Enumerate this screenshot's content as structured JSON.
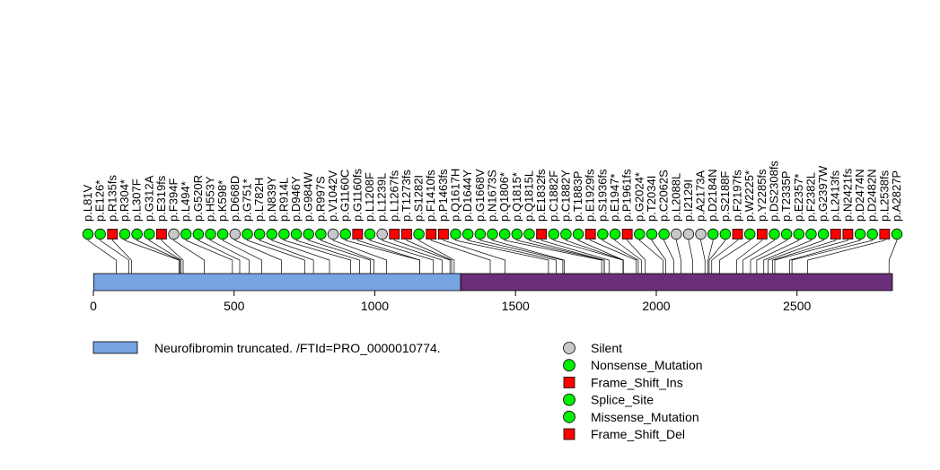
{
  "chart_data": {
    "type": "lollipop",
    "title": "",
    "xlabel": "",
    "ylabel": "",
    "xlim": [
      0,
      2839
    ],
    "x_ticks": [
      0,
      500,
      1000,
      1500,
      2000,
      2500
    ],
    "domains": [
      {
        "name": "Neurofibromin truncated. /FTId=PRO_0000010774.",
        "start": 1,
        "end": 1305,
        "color": "#77A4E2",
        "in_legend": true
      },
      {
        "name": "",
        "start": 1305,
        "end": 2839,
        "color": "#6B2E78",
        "in_legend": false
      }
    ],
    "mutation_types": [
      {
        "name": "Silent",
        "shape": "circle",
        "color": "#C8C8C8"
      },
      {
        "name": "Nonsense_Mutation",
        "shape": "circle",
        "color": "#00EE00"
      },
      {
        "name": "Frame_Shift_Ins",
        "shape": "square",
        "color": "#FF0000"
      },
      {
        "name": "Splice_Site",
        "shape": "circle",
        "color": "#00EE00"
      },
      {
        "name": "Missense_Mutation",
        "shape": "circle",
        "color": "#00EE00"
      },
      {
        "name": "Frame_Shift_Del",
        "shape": "square",
        "color": "#FF0000"
      }
    ],
    "mutations": [
      {
        "label": "p.L81V",
        "pos": 81,
        "type": "Missense_Mutation"
      },
      {
        "label": "p.E126*",
        "pos": 126,
        "type": "Nonsense_Mutation"
      },
      {
        "label": "p.R135fs",
        "pos": 135,
        "type": "Frame_Shift_Del"
      },
      {
        "label": "p.R304*",
        "pos": 304,
        "type": "Nonsense_Mutation"
      },
      {
        "label": "p.L307F",
        "pos": 307,
        "type": "Missense_Mutation"
      },
      {
        "label": "p.G312A",
        "pos": 312,
        "type": "Missense_Mutation"
      },
      {
        "label": "p.E319fs",
        "pos": 319,
        "type": "Frame_Shift_Del"
      },
      {
        "label": "p.F394F",
        "pos": 394,
        "type": "Silent"
      },
      {
        "label": "p.L494*",
        "pos": 494,
        "type": "Nonsense_Mutation"
      },
      {
        "label": "p.G520R",
        "pos": 520,
        "type": "Missense_Mutation"
      },
      {
        "label": "p.H553Y",
        "pos": 553,
        "type": "Missense_Mutation"
      },
      {
        "label": "p.K598*",
        "pos": 598,
        "type": "Nonsense_Mutation"
      },
      {
        "label": "p.D668D",
        "pos": 668,
        "type": "Silent"
      },
      {
        "label": "p.G751*",
        "pos": 751,
        "type": "Nonsense_Mutation"
      },
      {
        "label": "p.L782H",
        "pos": 782,
        "type": "Missense_Mutation"
      },
      {
        "label": "p.N839Y",
        "pos": 839,
        "type": "Missense_Mutation"
      },
      {
        "label": "p.R914L",
        "pos": 914,
        "type": "Missense_Mutation"
      },
      {
        "label": "p.D946Y",
        "pos": 946,
        "type": "Missense_Mutation"
      },
      {
        "label": "p.G984W",
        "pos": 984,
        "type": "Missense_Mutation"
      },
      {
        "label": "p.R997S",
        "pos": 997,
        "type": "Missense_Mutation"
      },
      {
        "label": "p.V1042V",
        "pos": 1042,
        "type": "Silent"
      },
      {
        "label": "p.G1160C",
        "pos": 1160,
        "type": "Missense_Mutation"
      },
      {
        "label": "p.G1160fs",
        "pos": 1160,
        "type": "Frame_Shift_Del"
      },
      {
        "label": "p.L1208F",
        "pos": 1208,
        "type": "Missense_Mutation"
      },
      {
        "label": "p.L1239L",
        "pos": 1239,
        "type": "Silent"
      },
      {
        "label": "p.L1267fs",
        "pos": 1267,
        "type": "Frame_Shift_Del"
      },
      {
        "label": "p.T1273fs",
        "pos": 1273,
        "type": "Frame_Shift_Ins"
      },
      {
        "label": "p.S1282I",
        "pos": 1282,
        "type": "Missense_Mutation"
      },
      {
        "label": "p.F1410fs",
        "pos": 1410,
        "type": "Frame_Shift_Del"
      },
      {
        "label": "p.P1463fs",
        "pos": 1463,
        "type": "Frame_Shift_Del"
      },
      {
        "label": "p.Q1617H",
        "pos": 1617,
        "type": "Missense_Mutation"
      },
      {
        "label": "p.D1644Y",
        "pos": 1644,
        "type": "Missense_Mutation"
      },
      {
        "label": "p.G1668V",
        "pos": 1668,
        "type": "Missense_Mutation"
      },
      {
        "label": "p.N1673S",
        "pos": 1673,
        "type": "Missense_Mutation"
      },
      {
        "label": "p.Q1806*",
        "pos": 1806,
        "type": "Nonsense_Mutation"
      },
      {
        "label": "p.Q1815*",
        "pos": 1815,
        "type": "Nonsense_Mutation"
      },
      {
        "label": "p.Q1815L",
        "pos": 1815,
        "type": "Missense_Mutation"
      },
      {
        "label": "p.E1832fs",
        "pos": 1832,
        "type": "Frame_Shift_Del"
      },
      {
        "label": "p.C1882F",
        "pos": 1882,
        "type": "Missense_Mutation"
      },
      {
        "label": "p.C1882Y",
        "pos": 1882,
        "type": "Missense_Mutation"
      },
      {
        "label": "p.T1883P",
        "pos": 1883,
        "type": "Missense_Mutation"
      },
      {
        "label": "p.E1929fs",
        "pos": 1929,
        "type": "Frame_Shift_Del"
      },
      {
        "label": "p.S1936fs",
        "pos": 1936,
        "type": "Missense_Mutation"
      },
      {
        "label": "p.E1947*",
        "pos": 1947,
        "type": "Nonsense_Mutation"
      },
      {
        "label": "p.P1961fs",
        "pos": 1961,
        "type": "Frame_Shift_Del"
      },
      {
        "label": "p.G2024*",
        "pos": 2024,
        "type": "Nonsense_Mutation"
      },
      {
        "label": "p.T2034I",
        "pos": 2034,
        "type": "Missense_Mutation"
      },
      {
        "label": "p.C2062S",
        "pos": 2062,
        "type": "Missense_Mutation"
      },
      {
        "label": "p.L2088L",
        "pos": 2088,
        "type": "Silent"
      },
      {
        "label": "p.I2129I",
        "pos": 2129,
        "type": "Silent"
      },
      {
        "label": "p.A2173A",
        "pos": 2173,
        "type": "Silent"
      },
      {
        "label": "p.D2184N",
        "pos": 2184,
        "type": "Missense_Mutation"
      },
      {
        "label": "p.S2188F",
        "pos": 2188,
        "type": "Missense_Mutation"
      },
      {
        "label": "p.F2197fs",
        "pos": 2197,
        "type": "Frame_Shift_Del"
      },
      {
        "label": "p.W2225*",
        "pos": 2225,
        "type": "Nonsense_Mutation"
      },
      {
        "label": "p.Y2285fs",
        "pos": 2285,
        "type": "Frame_Shift_Del"
      },
      {
        "label": "p.DS2308fs",
        "pos": 2308,
        "type": "Missense_Mutation"
      },
      {
        "label": "p.T2335P",
        "pos": 2335,
        "type": "Missense_Mutation"
      },
      {
        "label": "p.E2357*",
        "pos": 2357,
        "type": "Nonsense_Mutation"
      },
      {
        "label": "p.F2382L",
        "pos": 2382,
        "type": "Missense_Mutation"
      },
      {
        "label": "p.G2397W",
        "pos": 2397,
        "type": "Missense_Mutation"
      },
      {
        "label": "p.L2413fs",
        "pos": 2413,
        "type": "Frame_Shift_Del"
      },
      {
        "label": "p.N2421fs",
        "pos": 2421,
        "type": "Frame_Shift_Del"
      },
      {
        "label": "p.D2474N",
        "pos": 2474,
        "type": "Missense_Mutation"
      },
      {
        "label": "p.D2482N",
        "pos": 2482,
        "type": "Missense_Mutation"
      },
      {
        "label": "p.L2538fs",
        "pos": 2538,
        "type": "Frame_Shift_Del"
      },
      {
        "label": "p.A2827P",
        "pos": 2827,
        "type": "Missense_Mutation"
      }
    ]
  }
}
